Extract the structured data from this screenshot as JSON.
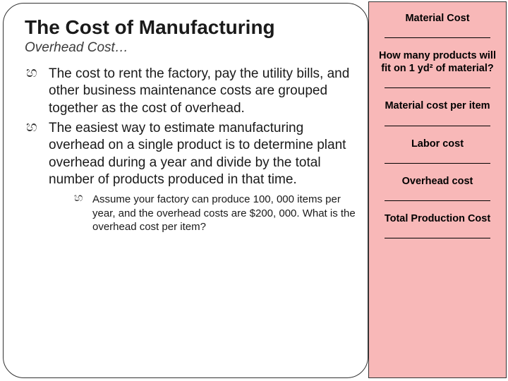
{
  "slide": {
    "title": "The Cost of Manufacturing",
    "subtitle": "Overhead Cost…",
    "bullets": [
      "The cost to rent the factory, pay the utility bills, and other business maintenance costs are grouped together as the cost of overhead.",
      "The easiest way to estimate manufacturing overhead on a single product is to determine plant overhead during a year and divide by the total number of products produced in that time."
    ],
    "sub_bullet": "Assume your factory can produce 100, 000 items per year, and the overhead costs are $200, 000. What is the overhead cost per item?"
  },
  "sidebar": {
    "items": [
      "Material Cost",
      "How many products will fit on 1 yd² of material?",
      "Material cost per item",
      "Labor cost",
      "Overhead cost",
      "Total Production Cost"
    ]
  },
  "colors": {
    "sidebar_bg": "#f8b8b8",
    "text": "#1a1a1a"
  }
}
